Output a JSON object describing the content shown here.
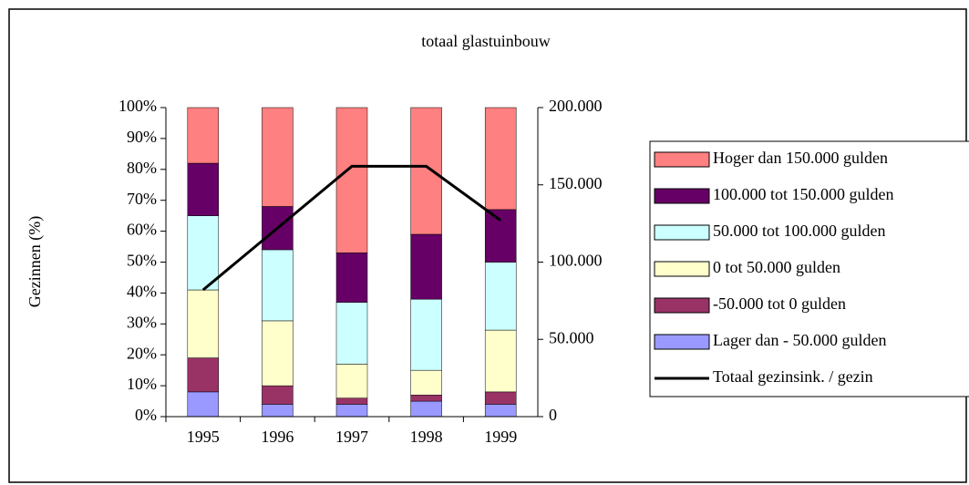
{
  "chart_data": {
    "type": "bar",
    "stacked": true,
    "title": "totaal glastuinbouw",
    "y_label": "Gezinnen (%)",
    "categories": [
      "1995",
      "1996",
      "1997",
      "1998",
      "1999"
    ],
    "series": [
      {
        "name": "Lager dan - 50.000 gulden",
        "color": "#9999ff",
        "values": [
          8,
          4,
          4,
          5,
          4
        ]
      },
      {
        "name": "-50.000 tot 0 gulden",
        "color": "#993366",
        "values": [
          11,
          6,
          2,
          2,
          4
        ]
      },
      {
        "name": "0 tot 50.000 gulden",
        "color": "#ffffcc",
        "values": [
          22,
          21,
          11,
          8,
          20
        ]
      },
      {
        "name": "50.000 tot 100.000 gulden",
        "color": "#ccffff",
        "values": [
          24,
          23,
          20,
          23,
          22
        ]
      },
      {
        "name": "100.000 tot 150.000 gulden",
        "color": "#660066",
        "values": [
          17,
          14,
          16,
          21,
          17
        ]
      },
      {
        "name": "Hoger dan 150.000 gulden",
        "color": "#ff8080",
        "values": [
          18,
          32,
          47,
          41,
          33
        ]
      },
      {
        "name": "Totaal gezinsink. / gezin",
        "type": "line",
        "axis": "y2",
        "color": "#000000",
        "values": [
          82000,
          122000,
          162000,
          162000,
          127000
        ]
      }
    ],
    "ylim": [
      0,
      100
    ],
    "yticks": [
      {
        "value": 0,
        "label": "0%"
      },
      {
        "value": 10,
        "label": "10%"
      },
      {
        "value": 20,
        "label": "20%"
      },
      {
        "value": 30,
        "label": "30%"
      },
      {
        "value": 40,
        "label": "40%"
      },
      {
        "value": 50,
        "label": "50%"
      },
      {
        "value": 60,
        "label": "60%"
      },
      {
        "value": 70,
        "label": "70%"
      },
      {
        "value": 80,
        "label": "80%"
      },
      {
        "value": 90,
        "label": "90%"
      },
      {
        "value": 100,
        "label": "100%"
      }
    ],
    "y2lim": [
      0,
      200000
    ],
    "y2ticks": [
      0,
      {
        "value": 50000,
        "label": "50.000"
      },
      {
        "value": 100000,
        "label": "100.000"
      },
      {
        "value": 150000,
        "label": "150.000"
      },
      {
        "value": 200000,
        "label": "200.000"
      }
    ],
    "legend": "right"
  }
}
